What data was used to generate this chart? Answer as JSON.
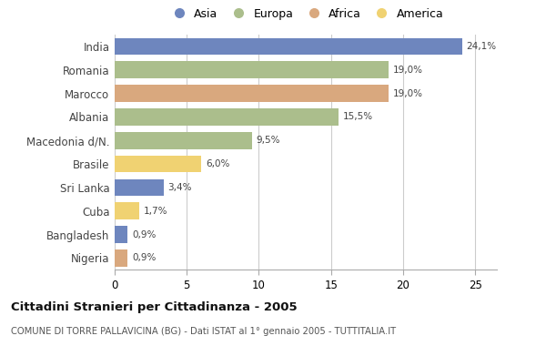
{
  "countries": [
    "India",
    "Romania",
    "Marocco",
    "Albania",
    "Macedonia d/N.",
    "Brasile",
    "Sri Lanka",
    "Cuba",
    "Bangladesh",
    "Nigeria"
  ],
  "values": [
    24.1,
    19.0,
    19.0,
    15.5,
    9.5,
    6.0,
    3.4,
    1.7,
    0.9,
    0.9
  ],
  "labels": [
    "24,1%",
    "19,0%",
    "19,0%",
    "15,5%",
    "9,5%",
    "6,0%",
    "3,4%",
    "1,7%",
    "0,9%",
    "0,9%"
  ],
  "continents": [
    "Asia",
    "Europa",
    "Africa",
    "Europa",
    "Europa",
    "America",
    "Asia",
    "America",
    "Asia",
    "Africa"
  ],
  "colors": {
    "Asia": "#6e86be",
    "Europa": "#abbe8c",
    "Africa": "#d9a87e",
    "America": "#f0d272"
  },
  "legend_order": [
    "Asia",
    "Europa",
    "Africa",
    "America"
  ],
  "legend_colors": [
    "#6e86be",
    "#abbe8c",
    "#d9a87e",
    "#f0d272"
  ],
  "xlim": [
    0,
    26.5
  ],
  "xticks": [
    0,
    5,
    10,
    15,
    20,
    25
  ],
  "title": "Cittadini Stranieri per Cittadinanza - 2005",
  "subtitle": "COMUNE DI TORRE PALLAVICINA (BG) - Dati ISTAT al 1° gennaio 2005 - TUTTITALIA.IT",
  "bg_color": "#ffffff",
  "plot_bg": "#ffffff",
  "bar_height": 0.72
}
